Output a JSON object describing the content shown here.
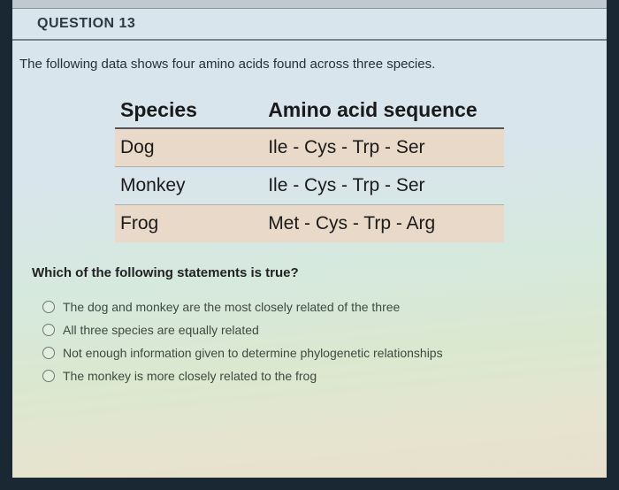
{
  "header": {
    "title": "QUESTION 13"
  },
  "prompt": "The following data shows four amino acids found across three species.",
  "table": {
    "columns": [
      "Species",
      "Amino acid sequence"
    ],
    "col_widths": [
      "38%",
      "62%"
    ],
    "rows": [
      {
        "cells": [
          "Dog",
          "Ile - Cys - Trp - Ser"
        ],
        "highlight": true
      },
      {
        "cells": [
          "Monkey",
          "Ile - Cys - Trp - Ser"
        ],
        "highlight": false
      },
      {
        "cells": [
          "Frog",
          "Met - Cys - Trp - Arg"
        ],
        "highlight": true
      }
    ],
    "highlight_bg": "#e9d9c9",
    "header_fontsize": 23,
    "cell_fontsize": 21
  },
  "subquestion": "Which of the following statements is true?",
  "choices": [
    {
      "label": "The dog and monkey are the most closely related of the three"
    },
    {
      "label": "All three species are equally related"
    },
    {
      "label": "Not enough information given to determine phylogenetic relationships"
    },
    {
      "label": "The monkey is more closely related to the frog"
    }
  ],
  "colors": {
    "dark_border": "#1a2833",
    "rule": "#7a848c",
    "text": "#263038"
  }
}
